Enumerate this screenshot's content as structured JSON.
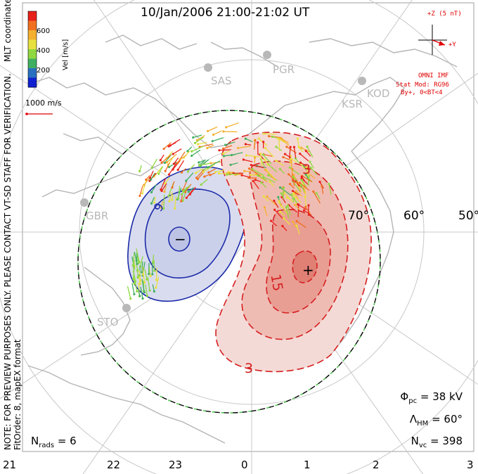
{
  "title": "10/Jan/2006 21:00-21:02 UT",
  "coordinate_system": "MLT coordinates",
  "watermark_note": "NOTE: FOR PREVIEW PURPOSES ONLY. PLEASE CONTACT VT-SD STAFF FOR VERIFICATION.",
  "fit_note": "FitOrder: 8, mapEX format",
  "colorbar": {
    "label": "Vel [m/s]",
    "ticks": [
      "600",
      "400",
      "200"
    ],
    "colors": [
      "#e8201a",
      "#f07020",
      "#f4b030",
      "#e8e040",
      "#90d840",
      "#40b060",
      "#2a70c0",
      "#1020d0"
    ]
  },
  "scale_vector": {
    "label": "1000 m/s",
    "color": "#e00000"
  },
  "imf": {
    "z_label": "+Z (5 nT)",
    "y_label": "+Y",
    "source": "OMNI IMF",
    "stat_model": "Stat Mod: RG96",
    "condition": "By+, 0<BT<4",
    "color": "#e00000"
  },
  "stats": {
    "phi_pc_label": "Φ",
    "phi_pc_sub": "pc",
    "phi_pc_value": "= 38 kV",
    "lambda_hm_label": "Λ",
    "lambda_hm_sub": "HM",
    "lambda_hm_value": "= 60°",
    "n_vc_label": "N",
    "n_vc_sub": "vc",
    "n_vc_value": "= 398",
    "n_rads_label": "N",
    "n_rads_sub": "rads",
    "n_rads_value": "= 6"
  },
  "latitude_labels": [
    "70°",
    "60°",
    "50°"
  ],
  "mlt_axis": [
    "21",
    "22",
    "23",
    "0",
    "1",
    "2",
    "3"
  ],
  "radar_sites": [
    "SAS",
    "PGR",
    "KOD",
    "KSR",
    "GBR",
    "STO"
  ],
  "contour_labels": {
    "positive": [
      "3",
      "15"
    ],
    "negative": [
      "9"
    ],
    "max_marker": "+",
    "min_marker": "−"
  },
  "colors": {
    "positive_cell": "#d42020",
    "negative_cell": "#1a2aa8",
    "grid": "#c8c8c8",
    "coast": "#b4b4b4",
    "heppner_maynard": "#40c040"
  }
}
